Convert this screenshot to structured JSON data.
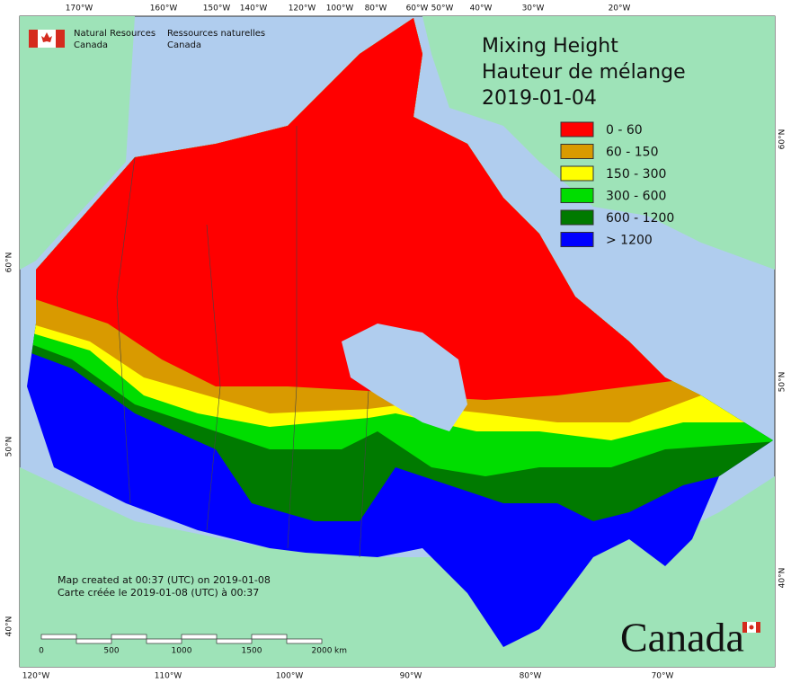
{
  "header": {
    "agency_en": [
      "Natural Resources",
      "Canada"
    ],
    "agency_fr": [
      "Ressources naturelles",
      "Canada"
    ]
  },
  "title": [
    "Mixing Height",
    "Hauteur de mélange",
    "2019-01-04"
  ],
  "legend": [
    {
      "label": "0 - 60",
      "color": "#ff0000"
    },
    {
      "label": "60 - 150",
      "color": "#d99a00"
    },
    {
      "label": "150 - 300",
      "color": "#ffff00"
    },
    {
      "label": "300 - 600",
      "color": "#00dd00"
    },
    {
      "label": "600 - 1200",
      "color": "#007a00"
    },
    {
      "label": "> 1200",
      "color": "#0000ff"
    }
  ],
  "credit": [
    "Map created at 00:37 (UTC) on 2019-01-08",
    "Carte créée le 2019-01-08 (UTC) à 00:37"
  ],
  "scale_bar": {
    "labels": [
      "0",
      "500",
      "1000",
      "1500",
      "2000"
    ],
    "unit": "km"
  },
  "graticule": {
    "top": [
      "170°W",
      "160°W",
      "150°W",
      "140°W",
      "120°W",
      "100°W",
      "80°W",
      "60°W",
      "50°W",
      "40°W",
      "30°W",
      "20°W"
    ],
    "bottom": [
      "120°W",
      "110°W",
      "100°W",
      "90°W",
      "80°W",
      "70°W"
    ],
    "left": [
      "60°N",
      "50°N",
      "40°N"
    ],
    "right": [
      "60°N",
      "50°N",
      "40°N"
    ]
  },
  "wordmark": "Canada"
}
